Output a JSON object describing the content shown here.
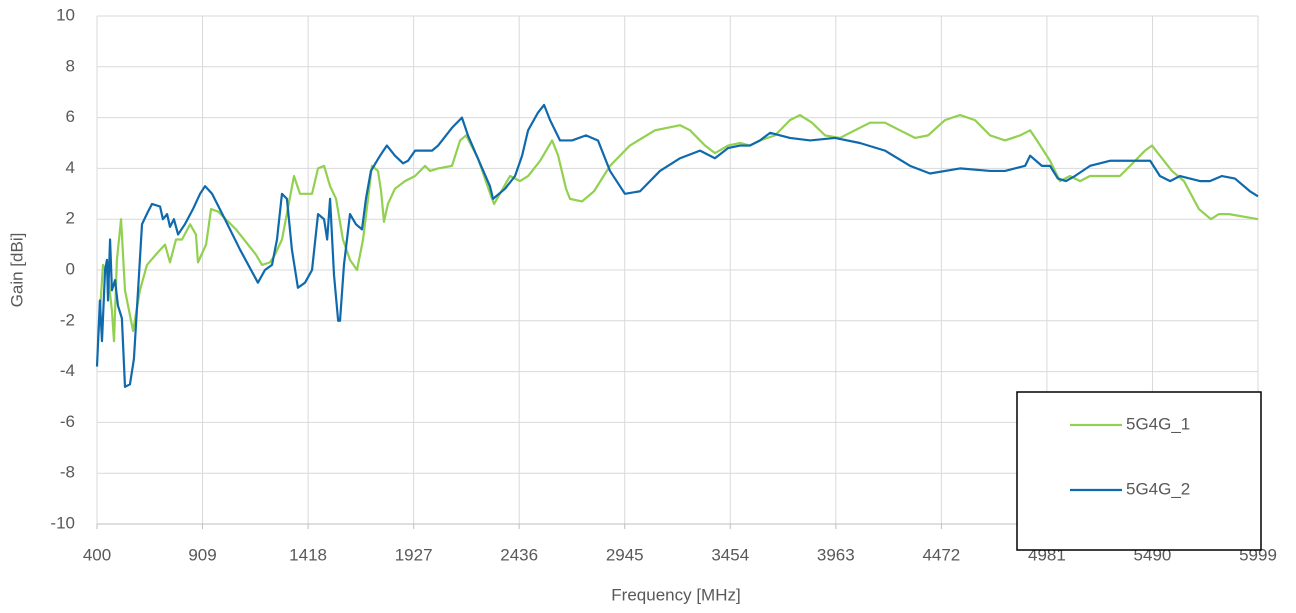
{
  "chart_data": {
    "type": "line",
    "x_label": "Frequency [MHz]",
    "y_label": "Gain [dBi]",
    "xlim": [
      400,
      5999
    ],
    "xticks": [
      400,
      909,
      1418,
      1927,
      2436,
      2945,
      3454,
      3963,
      4472,
      4981,
      5490,
      5999
    ],
    "ylim": [
      -10,
      10
    ],
    "yticks": [
      -10,
      -8,
      -6,
      -4,
      -2,
      0,
      2,
      4,
      6,
      8,
      10
    ],
    "grid": true,
    "legend": "lower right",
    "series": [
      {
        "name": "5G4G_1",
        "color": "#92d050",
        "x": [
          405,
          429,
          453,
          472,
          482,
          496,
          516,
          535,
          574,
          607,
          641,
          694,
          728,
          752,
          781,
          810,
          849,
          877,
          887,
          926,
          950,
          984,
          1070,
          1167,
          1196,
          1234,
          1258,
          1292,
          1350,
          1379,
          1437,
          1466,
          1495,
          1524,
          1553,
          1586,
          1620,
          1654,
          1683,
          1707,
          1726,
          1755,
          1770,
          1784,
          1803,
          1837,
          1885,
          1934,
          1982,
          2006,
          2045,
          2112,
          2151,
          2180,
          2237,
          2305,
          2315,
          2343,
          2392,
          2440,
          2479,
          2537,
          2595,
          2624,
          2662,
          2681,
          2739,
          2797,
          2874,
          2970,
          3091,
          3212,
          3260,
          3332,
          3380,
          3443,
          3501,
          3549,
          3597,
          3670,
          3742,
          3790,
          3848,
          3911,
          3983,
          4055,
          4128,
          4200,
          4272,
          4345,
          4408,
          4489,
          4562,
          4634,
          4707,
          4779,
          4852,
          4900,
          4933,
          4996,
          5044,
          5092,
          5141,
          5189,
          5237,
          5285,
          5333,
          5382,
          5454,
          5488,
          5526,
          5584,
          5642,
          5714,
          5772,
          5810,
          5859,
          5931,
          5999
        ],
        "values": [
          -2.8,
          0.2,
          -0.2,
          -1.6,
          -2.8,
          0.4,
          2.0,
          -0.8,
          -2.4,
          -0.8,
          0.2,
          0.7,
          1.0,
          0.3,
          1.2,
          1.2,
          1.8,
          1.4,
          0.3,
          1.0,
          2.4,
          2.3,
          1.6,
          0.6,
          0.2,
          0.3,
          0.6,
          1.2,
          3.7,
          3.0,
          3.0,
          4.0,
          4.1,
          3.3,
          2.8,
          1.2,
          0.4,
          0.0,
          1.2,
          2.8,
          4.1,
          3.9,
          3.1,
          1.9,
          2.6,
          3.2,
          3.5,
          3.7,
          4.1,
          3.9,
          4.0,
          4.1,
          5.1,
          5.3,
          4.4,
          2.8,
          2.6,
          3.0,
          3.7,
          3.5,
          3.7,
          4.3,
          5.1,
          4.5,
          3.2,
          2.8,
          2.7,
          3.1,
          4.1,
          4.9,
          5.5,
          5.7,
          5.5,
          4.9,
          4.6,
          4.9,
          5.0,
          4.9,
          5.1,
          5.3,
          5.9,
          6.1,
          5.8,
          5.3,
          5.2,
          5.5,
          5.8,
          5.8,
          5.5,
          5.2,
          5.3,
          5.9,
          6.1,
          5.9,
          5.3,
          5.1,
          5.3,
          5.5,
          5.1,
          4.3,
          3.5,
          3.7,
          3.5,
          3.7,
          3.7,
          3.7,
          3.7,
          4.1,
          4.7,
          4.9,
          4.5,
          3.9,
          3.5,
          2.4,
          2.0,
          2.2,
          2.2,
          2.1,
          2.0
        ]
      },
      {
        "name": "5G4G_2",
        "color": "#0f69ad",
        "x": [
          400,
          414,
          424,
          439,
          448,
          453,
          463,
          472,
          487,
          501,
          520,
          535,
          559,
          578,
          598,
          617,
          646,
          665,
          704,
          718,
          738,
          752,
          771,
          791,
          824,
          863,
          897,
          921,
          955,
          1017,
          1090,
          1176,
          1210,
          1244,
          1268,
          1292,
          1316,
          1340,
          1369,
          1403,
          1437,
          1466,
          1495,
          1510,
          1524,
          1543,
          1563,
          1572,
          1591,
          1620,
          1649,
          1678,
          1697,
          1721,
          1765,
          1798,
          1837,
          1876,
          1900,
          1934,
          1982,
          2016,
          2045,
          2112,
          2160,
          2189,
          2247,
          2295,
          2310,
          2368,
          2416,
          2450,
          2479,
          2527,
          2556,
          2585,
          2633,
          2691,
          2758,
          2816,
          2874,
          2946,
          3019,
          3115,
          3212,
          3308,
          3380,
          3443,
          3501,
          3549,
          3597,
          3646,
          3742,
          3839,
          3959,
          4079,
          4200,
          4321,
          4417,
          4562,
          4707,
          4779,
          4876,
          4900,
          4957,
          4996,
          5034,
          5073,
          5116,
          5189,
          5237,
          5285,
          5382,
          5479,
          5526,
          5575,
          5623,
          5671,
          5719,
          5767,
          5825,
          5888,
          5960,
          5999
        ],
        "values": [
          -3.8,
          -1.2,
          -2.8,
          0.0,
          0.4,
          -1.2,
          1.2,
          -0.8,
          -0.4,
          -1.4,
          -1.9,
          -4.6,
          -4.5,
          -3.5,
          -0.8,
          1.8,
          2.3,
          2.6,
          2.5,
          2.0,
          2.2,
          1.7,
          2.0,
          1.4,
          1.8,
          2.4,
          3.0,
          3.3,
          3.0,
          2.0,
          0.8,
          -0.5,
          0.0,
          0.2,
          1.2,
          3.0,
          2.8,
          0.8,
          -0.7,
          -0.5,
          0.0,
          2.2,
          2.0,
          1.2,
          2.8,
          -0.2,
          -2.0,
          -2.0,
          0.2,
          2.2,
          1.8,
          1.6,
          2.8,
          3.9,
          4.5,
          4.9,
          4.5,
          4.2,
          4.3,
          4.7,
          4.7,
          4.7,
          4.9,
          5.6,
          6.0,
          5.3,
          4.2,
          3.3,
          2.8,
          3.2,
          3.7,
          4.5,
          5.5,
          6.2,
          6.5,
          5.9,
          5.1,
          5.1,
          5.3,
          5.1,
          3.9,
          3.0,
          3.1,
          3.9,
          4.4,
          4.7,
          4.4,
          4.8,
          4.9,
          4.9,
          5.1,
          5.4,
          5.2,
          5.1,
          5.2,
          5.0,
          4.7,
          4.1,
          3.8,
          4.0,
          3.9,
          3.9,
          4.1,
          4.5,
          4.1,
          4.1,
          3.6,
          3.5,
          3.7,
          4.1,
          4.2,
          4.3,
          4.3,
          4.3,
          3.7,
          3.5,
          3.7,
          3.6,
          3.5,
          3.5,
          3.7,
          3.6,
          3.1,
          2.9
        ]
      }
    ]
  }
}
